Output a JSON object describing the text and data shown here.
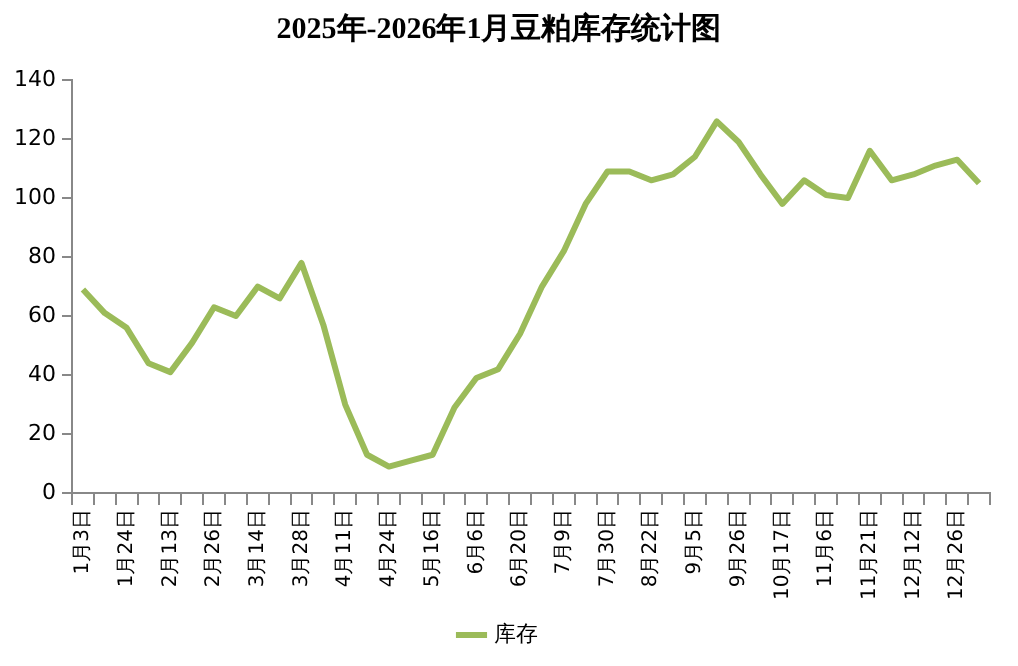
{
  "chart_data": {
    "type": "line",
    "title": "2025年-2026年1月豆粕库存统计图",
    "categories": [
      "1月3日",
      null,
      "1月24日",
      null,
      "2月13日",
      null,
      "2月26日",
      null,
      "3月14日",
      null,
      "3月28日",
      null,
      "4月11日",
      null,
      "4月24日",
      null,
      "5月16日",
      null,
      "6月6日",
      null,
      "6月20日",
      null,
      "7月9日",
      null,
      "7月30日",
      null,
      "8月22日",
      null,
      "9月5日",
      null,
      "9月26日",
      null,
      "10月17日",
      null,
      "11月6日",
      null,
      "11月21日",
      null,
      "12月12日",
      null,
      "12月26日",
      null
    ],
    "series": [
      {
        "name": "库存",
        "color": "#9bbb59",
        "values": [
          69,
          61,
          56,
          44,
          41,
          51,
          63,
          60,
          70,
          66,
          78,
          57,
          30,
          13,
          9,
          11,
          13,
          29,
          39,
          42,
          54,
          70,
          82,
          98,
          109,
          109,
          106,
          108,
          114,
          126,
          119,
          108,
          98,
          106,
          101,
          100,
          116,
          106,
          108,
          111,
          113,
          105
        ]
      }
    ],
    "ylim": [
      0,
      140
    ],
    "yticks": [
      0,
      20,
      40,
      60,
      80,
      100,
      120,
      140
    ],
    "grid": false,
    "legend": "bottom",
    "marker": "none",
    "line_style": "solid"
  }
}
